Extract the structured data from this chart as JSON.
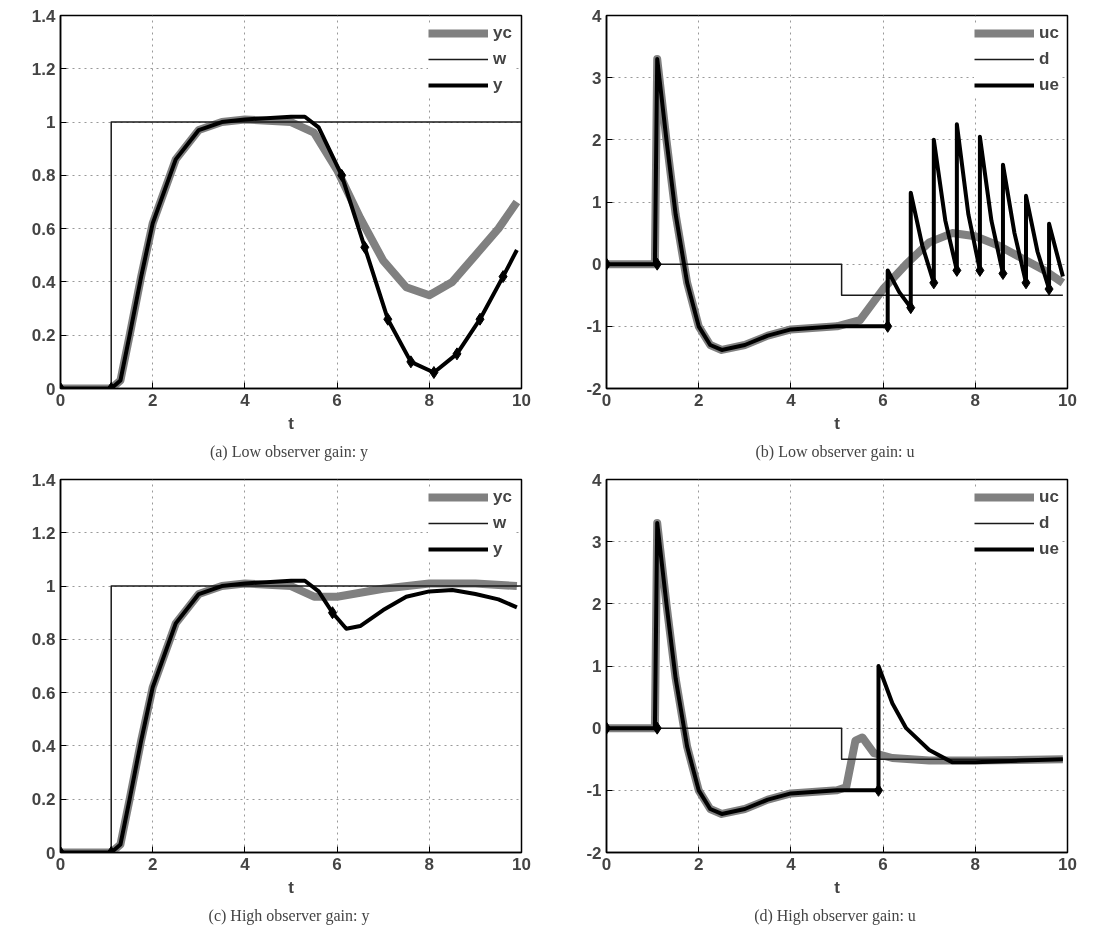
{
  "chart_data": [
    {
      "type": "line",
      "xlabel": "t",
      "xlim": [
        0,
        10
      ],
      "ylim": [
        0,
        1.4
      ],
      "xticks": [
        0,
        2,
        4,
        6,
        8,
        10
      ],
      "yticks": [
        0,
        0.2,
        0.4,
        0.6,
        0.8,
        1,
        1.2,
        1.4
      ],
      "grid": true,
      "legend": "top right",
      "annotations": [
        "(a)  Low observer gain: y"
      ],
      "series": [
        {
          "name": "yc",
          "color": "#808080",
          "x": [
            0,
            1.1,
            1.3,
            1.5,
            1.75,
            2,
            2.5,
            3,
            3.5,
            4,
            5,
            5.5,
            6,
            6.5,
            7,
            7.5,
            8,
            8.5,
            9,
            9.5,
            9.9
          ],
          "values": [
            0,
            0,
            0.03,
            0.2,
            0.42,
            0.62,
            0.86,
            0.97,
            1.0,
            1.01,
            1.0,
            0.96,
            0.82,
            0.64,
            0.48,
            0.38,
            0.35,
            0.4,
            0.5,
            0.6,
            0.7
          ]
        },
        {
          "name": "w",
          "type": "step",
          "color": "#1a1a1a",
          "x": [
            0,
            1.1,
            10
          ],
          "values": [
            0,
            1,
            1
          ]
        },
        {
          "name": "y",
          "color": "#000000",
          "x": [
            0,
            1.1,
            1.3,
            1.5,
            1.75,
            2,
            2.5,
            3,
            3.5,
            4,
            5,
            5.3,
            5.6,
            6.1,
            6.6,
            7.1,
            7.6,
            8.1,
            8.6,
            9.1,
            9.6,
            9.9
          ],
          "values": [
            0,
            0,
            0.03,
            0.2,
            0.42,
            0.62,
            0.86,
            0.97,
            1.0,
            1.01,
            1.02,
            1.02,
            0.98,
            0.8,
            0.53,
            0.26,
            0.1,
            0.06,
            0.13,
            0.26,
            0.42,
            0.52
          ]
        },
        {
          "type": "scatter",
          "marker": "diamond",
          "color": "#000000",
          "x": [
            0,
            1.1,
            6.1,
            6.6,
            7.1,
            7.6,
            8.1,
            8.6,
            9.1,
            9.6
          ],
          "values": [
            0,
            0,
            0.8,
            0.53,
            0.26,
            0.1,
            0.06,
            0.13,
            0.26,
            0.42
          ]
        }
      ]
    },
    {
      "type": "line",
      "xlabel": "t",
      "xlim": [
        0,
        10
      ],
      "ylim": [
        -2,
        4
      ],
      "xticks": [
        0,
        2,
        4,
        6,
        8,
        10
      ],
      "yticks": [
        -2,
        -1,
        0,
        1,
        2,
        3,
        4
      ],
      "grid": true,
      "legend": "top right",
      "annotations": [
        "(b)  Low observer gain: u"
      ],
      "series": [
        {
          "name": "uc",
          "color": "#808080",
          "x": [
            0,
            1.05,
            1.1,
            1.3,
            1.5,
            1.75,
            2,
            2.25,
            2.5,
            3,
            3.5,
            4,
            5,
            5.5,
            6,
            6.5,
            7,
            7.5,
            8,
            8.5,
            9,
            9.5,
            9.9
          ],
          "values": [
            0,
            0,
            3.3,
            2.0,
            0.8,
            -0.3,
            -1.0,
            -1.3,
            -1.38,
            -1.3,
            -1.15,
            -1.05,
            -1.0,
            -0.9,
            -0.4,
            0.0,
            0.35,
            0.5,
            0.45,
            0.3,
            0.1,
            -0.1,
            -0.3
          ]
        },
        {
          "name": "d",
          "type": "step",
          "color": "#1a1a1a",
          "x": [
            0,
            5.1,
            9.9
          ],
          "values": [
            0,
            -0.5,
            -0.5
          ]
        },
        {
          "name": "ue",
          "color": "#000000",
          "x": [
            0,
            1.05,
            1.1,
            1.3,
            1.5,
            1.75,
            2,
            2.25,
            2.5,
            3,
            3.5,
            4,
            5,
            6.1,
            6.1,
            6.35,
            6.6,
            6.6,
            6.85,
            7.1,
            7.1,
            7.35,
            7.6,
            7.6,
            7.85,
            8.1,
            8.1,
            8.35,
            8.6,
            8.6,
            8.85,
            9.1,
            9.1,
            9.35,
            9.6,
            9.6,
            9.9
          ],
          "values": [
            0,
            0,
            3.3,
            2.0,
            0.8,
            -0.3,
            -1.0,
            -1.3,
            -1.38,
            -1.3,
            -1.15,
            -1.05,
            -1.0,
            -1.0,
            -0.1,
            -0.45,
            -0.7,
            1.15,
            0.3,
            -0.3,
            2.0,
            0.7,
            -0.1,
            2.25,
            0.8,
            -0.1,
            2.05,
            0.7,
            -0.15,
            1.6,
            0.5,
            -0.3,
            1.1,
            0.2,
            -0.4,
            0.65,
            -0.2
          ]
        },
        {
          "type": "scatter",
          "marker": "diamond",
          "color": "#000000",
          "x": [
            0,
            1.1,
            6.1,
            6.6,
            7.1,
            7.6,
            8.1,
            8.6,
            9.1,
            9.6
          ],
          "values": [
            0,
            0,
            -1,
            -0.7,
            -0.3,
            -0.1,
            -0.1,
            -0.15,
            -0.3,
            -0.4
          ]
        }
      ]
    },
    {
      "type": "line",
      "xlabel": "t",
      "xlim": [
        0,
        10
      ],
      "ylim": [
        0,
        1.4
      ],
      "xticks": [
        0,
        2,
        4,
        6,
        8,
        10
      ],
      "yticks": [
        0,
        0.2,
        0.4,
        0.6,
        0.8,
        1,
        1.2,
        1.4
      ],
      "grid": true,
      "legend": "top right",
      "annotations": [
        "(c)  High observer gain: y"
      ],
      "series": [
        {
          "name": "yc",
          "color": "#808080",
          "x": [
            0,
            1.1,
            1.3,
            1.5,
            1.75,
            2,
            2.5,
            3,
            3.5,
            4,
            5,
            5.5,
            6,
            7,
            8,
            9,
            9.9
          ],
          "values": [
            0,
            0,
            0.03,
            0.2,
            0.42,
            0.62,
            0.86,
            0.97,
            1.0,
            1.01,
            1.0,
            0.96,
            0.96,
            0.99,
            1.01,
            1.01,
            1.0
          ]
        },
        {
          "name": "w",
          "type": "step",
          "color": "#1a1a1a",
          "x": [
            0,
            1.1,
            10
          ],
          "values": [
            0,
            1,
            1
          ]
        },
        {
          "name": "y",
          "color": "#000000",
          "x": [
            0,
            1.1,
            1.3,
            1.5,
            1.75,
            2,
            2.5,
            3,
            3.5,
            4,
            5,
            5.3,
            5.6,
            5.9,
            6.2,
            6.5,
            7,
            7.5,
            8,
            8.5,
            9,
            9.5,
            9.9
          ],
          "values": [
            0,
            0,
            0.03,
            0.2,
            0.42,
            0.62,
            0.86,
            0.97,
            1.0,
            1.01,
            1.02,
            1.02,
            0.98,
            0.9,
            0.84,
            0.85,
            0.91,
            0.96,
            0.98,
            0.985,
            0.97,
            0.95,
            0.92
          ]
        },
        {
          "type": "scatter",
          "marker": "diamond",
          "color": "#000000",
          "x": [
            0,
            1.1,
            5.9
          ],
          "values": [
            0,
            0,
            0.9
          ]
        }
      ]
    },
    {
      "type": "line",
      "xlabel": "t",
      "xlim": [
        0,
        10
      ],
      "ylim": [
        -2,
        4
      ],
      "xticks": [
        0,
        2,
        4,
        6,
        8,
        10
      ],
      "yticks": [
        -2,
        -1,
        0,
        1,
        2,
        3,
        4
      ],
      "grid": true,
      "legend": "top right",
      "annotations": [
        "(d)  High observer gain: u"
      ],
      "series": [
        {
          "name": "uc",
          "color": "#808080",
          "x": [
            0,
            1.05,
            1.1,
            1.3,
            1.5,
            1.75,
            2,
            2.25,
            2.5,
            3,
            3.5,
            4,
            5,
            5.2,
            5.4,
            5.55,
            5.8,
            6.2,
            7,
            8,
            9.9
          ],
          "values": [
            0,
            0,
            3.3,
            2.0,
            0.8,
            -0.3,
            -1.0,
            -1.3,
            -1.38,
            -1.3,
            -1.15,
            -1.05,
            -1.0,
            -0.95,
            -0.2,
            -0.15,
            -0.4,
            -0.48,
            -0.52,
            -0.52,
            -0.5
          ]
        },
        {
          "name": "d",
          "type": "step",
          "color": "#1a1a1a",
          "x": [
            0,
            5.1,
            9.9
          ],
          "values": [
            0,
            -0.5,
            -0.5
          ]
        },
        {
          "name": "ue",
          "color": "#000000",
          "x": [
            0,
            1.05,
            1.1,
            1.3,
            1.5,
            1.75,
            2,
            2.25,
            2.5,
            3,
            3.5,
            4,
            5,
            5.9,
            5.9,
            6.2,
            6.5,
            7,
            7.5,
            8,
            9,
            9.9
          ],
          "values": [
            0,
            0,
            3.3,
            2.0,
            0.8,
            -0.3,
            -1.0,
            -1.3,
            -1.38,
            -1.3,
            -1.15,
            -1.05,
            -1.0,
            -1.0,
            1.0,
            0.4,
            0.0,
            -0.35,
            -0.55,
            -0.55,
            -0.52,
            -0.5
          ]
        },
        {
          "type": "scatter",
          "marker": "diamond",
          "color": "#000000",
          "x": [
            0,
            1.1,
            5.9
          ],
          "values": [
            0,
            0,
            -1
          ]
        }
      ]
    }
  ]
}
